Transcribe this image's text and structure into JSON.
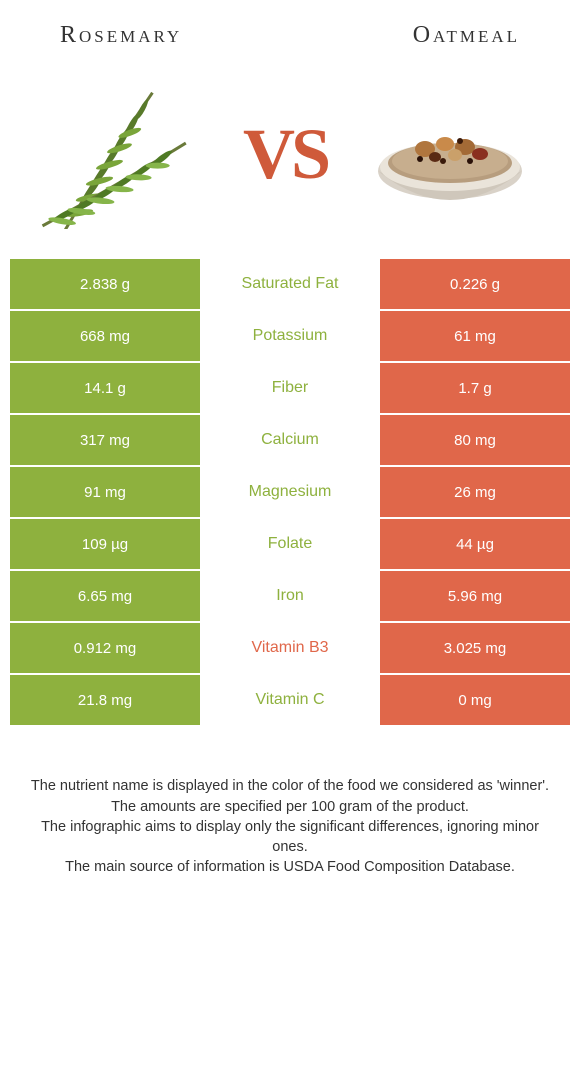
{
  "colors": {
    "left_bg": "#8eb13e",
    "right_bg": "#e0674a",
    "winner_left": "#8eb13e",
    "winner_right": "#e0674a",
    "text_dark": "#333333",
    "vs": "#cf5a3a"
  },
  "header": {
    "left_title": "Rosemary",
    "right_title": "Oatmeal"
  },
  "vs": {
    "label": "VS"
  },
  "rows": [
    {
      "left": "2.838 g",
      "label": "Saturated Fat",
      "right": "0.226 g",
      "winner": "left"
    },
    {
      "left": "668 mg",
      "label": "Potassium",
      "right": "61 mg",
      "winner": "left"
    },
    {
      "left": "14.1 g",
      "label": "Fiber",
      "right": "1.7 g",
      "winner": "left"
    },
    {
      "left": "317 mg",
      "label": "Calcium",
      "right": "80 mg",
      "winner": "left"
    },
    {
      "left": "91 mg",
      "label": "Magnesium",
      "right": "26 mg",
      "winner": "left"
    },
    {
      "left": "109 µg",
      "label": "Folate",
      "right": "44 µg",
      "winner": "left"
    },
    {
      "left": "6.65 mg",
      "label": "Iron",
      "right": "5.96 mg",
      "winner": "left"
    },
    {
      "left": "0.912 mg",
      "label": "Vitamin B3",
      "right": "3.025 mg",
      "winner": "right"
    },
    {
      "left": "21.8 mg",
      "label": "Vitamin C",
      "right": "0 mg",
      "winner": "left"
    }
  ],
  "footnotes": [
    "The nutrient name is displayed in the color of the food we considered as 'winner'.",
    "The amounts are specified per 100 gram of the product.",
    "The infographic aims to display only the significant differences, ignoring minor ones.",
    "The main source of information is USDA Food Composition Database."
  ]
}
